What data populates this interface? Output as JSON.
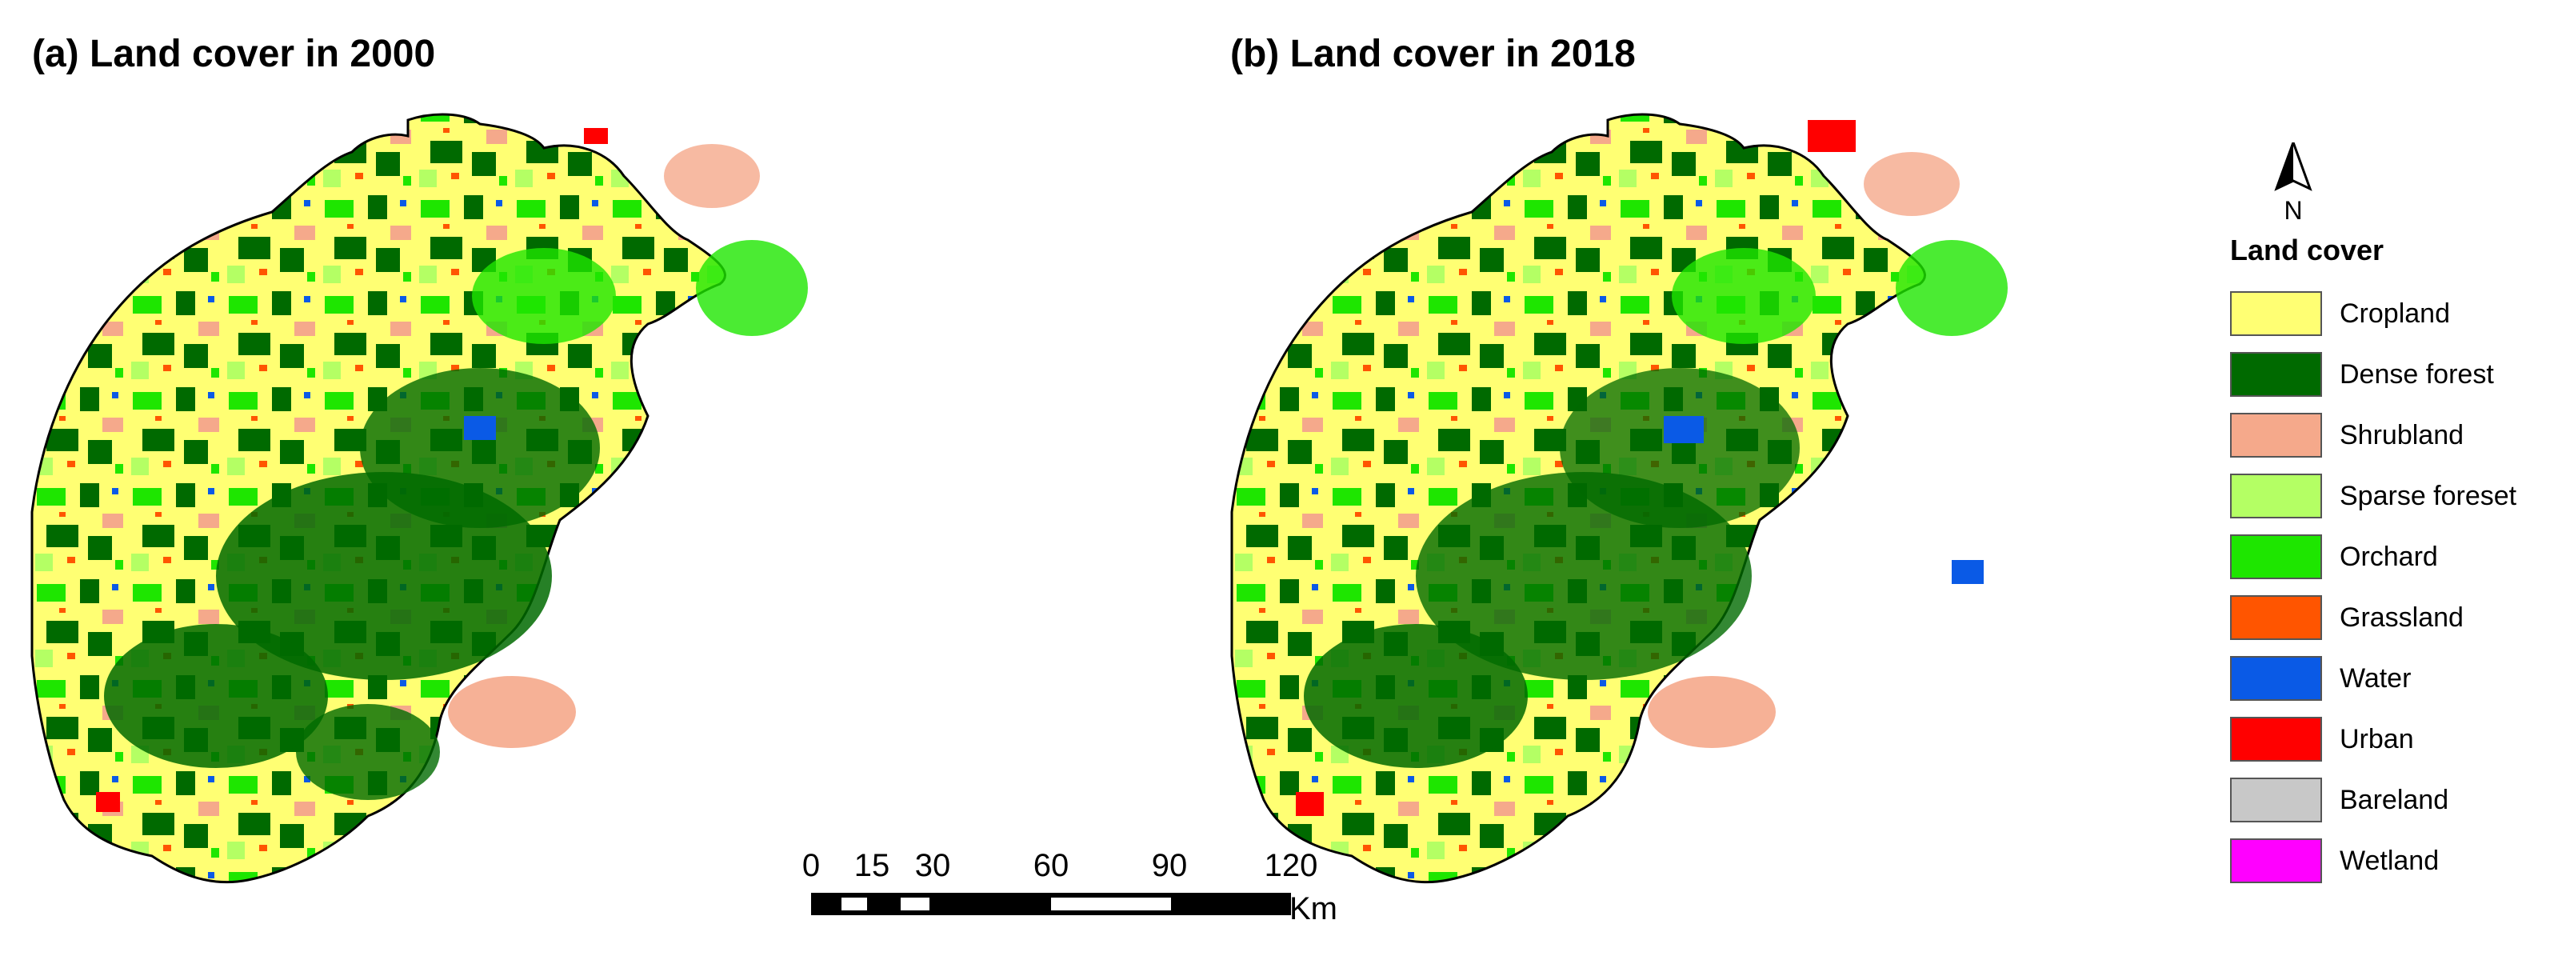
{
  "panels": [
    {
      "id": "a",
      "title": "(a) Land cover in 2000"
    },
    {
      "id": "b",
      "title": "(b) Land cover in 2018"
    }
  ],
  "north_arrow": {
    "label": "N",
    "icon": "north-arrow-icon"
  },
  "legend": {
    "title": "Land cover",
    "items": [
      {
        "label": "Cropland",
        "color": "#ffff73"
      },
      {
        "label": "Dense forest",
        "color": "#006a00"
      },
      {
        "label": "Shrubland",
        "color": "#f5a98b"
      },
      {
        "label": "Sparse foreset",
        "color": "#b4ff64"
      },
      {
        "label": "Orchard",
        "color": "#1ee600"
      },
      {
        "label": "Grassland",
        "color": "#ff5500"
      },
      {
        "label": "Water",
        "color": "#0a5ae6"
      },
      {
        "label": "Urban",
        "color": "#ff0000"
      },
      {
        "label": "Bareland",
        "color": "#c8c8c8"
      },
      {
        "label": "Wetland",
        "color": "#ff00ff"
      }
    ]
  },
  "scale_bar": {
    "ticks": [
      "0",
      "15",
      "30",
      "60",
      "90",
      "120"
    ],
    "unit": "Km"
  }
}
